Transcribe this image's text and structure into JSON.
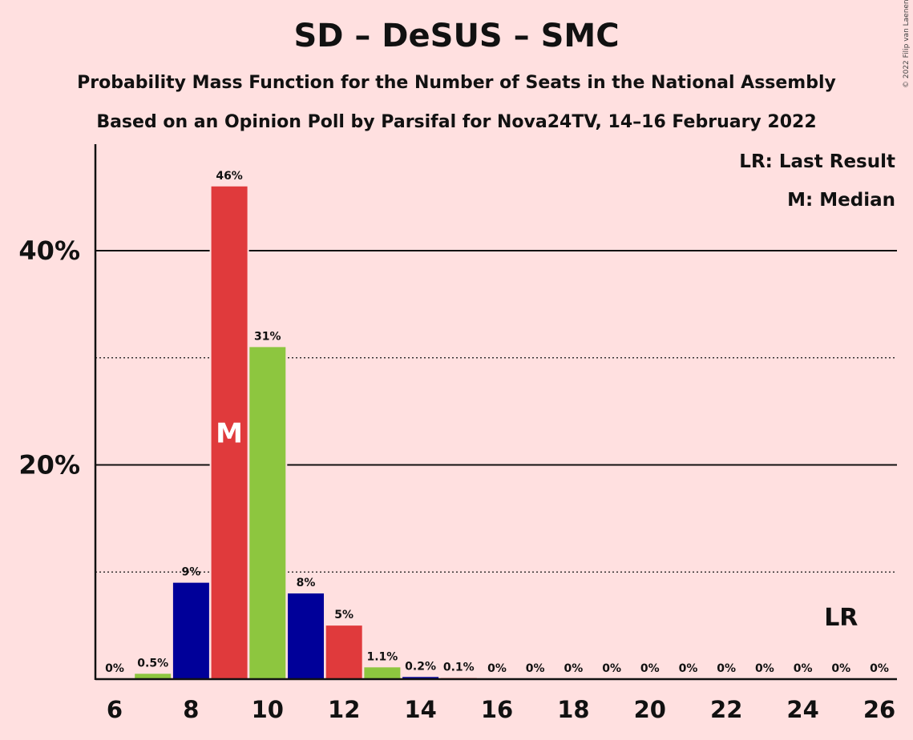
{
  "chart_data": {
    "type": "bar",
    "title": "SD – DeSUS – SMC",
    "subtitle": "Probability Mass Function for the Number of Seats in the National Assembly",
    "subtitle2": "Based on an Opinion Poll by Parsifal for Nova24TV, 14–16 February 2022",
    "copyright": "© 2022 Filip van Laenen",
    "legend": [
      "LR: Last Result",
      "M: Median"
    ],
    "legend_placement": "top-right",
    "xlabel": "",
    "ylabel": "",
    "x": [
      6,
      7,
      8,
      9,
      10,
      11,
      12,
      13,
      14,
      15,
      16,
      17,
      18,
      19,
      20,
      21,
      22,
      23,
      24,
      25,
      26
    ],
    "values": [
      0,
      0.5,
      9,
      46,
      31,
      8,
      5,
      1.1,
      0.2,
      0.1,
      0,
      0,
      0,
      0,
      0,
      0,
      0,
      0,
      0,
      0,
      0
    ],
    "value_labels": [
      "0%",
      "0.5%",
      "9%",
      "46%",
      "31%",
      "8%",
      "5%",
      "1.1%",
      "0.2%",
      "0.1%",
      "0%",
      "0%",
      "0%",
      "0%",
      "0%",
      "0%",
      "0%",
      "0%",
      "0%",
      "0%",
      "0%"
    ],
    "x_tick_labels": [
      "6",
      "8",
      "10",
      "12",
      "14",
      "16",
      "18",
      "20",
      "22",
      "24",
      "26"
    ],
    "y_tick_labels": [
      "20%",
      "40%"
    ],
    "ylim": [
      0,
      50
    ],
    "grid": "solid lines at 20% and 40%, dotted lines at 10% and 30%",
    "median_seat": 9,
    "median_label": "M",
    "last_result_seat": 25,
    "last_result_label": "LR",
    "colors": [
      "#000099",
      "#e03a3c",
      "#8dc63f"
    ],
    "color_cycle_start_seat": 8
  }
}
